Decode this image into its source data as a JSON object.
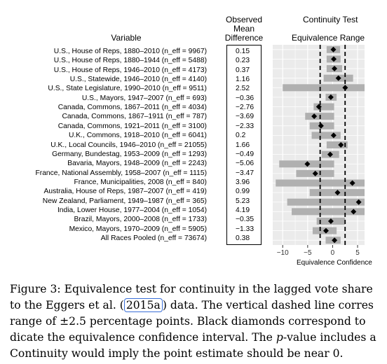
{
  "figure": {
    "headers": {
      "variable": "Variable",
      "observed_line1": "Observed",
      "observed_line2": "Mean",
      "observed_line3": "Difference",
      "continuity_title": "Continuity Test",
      "equivalence_range": "Equivalence Range"
    },
    "x_axis_label": "Equivalence Confidence",
    "x_ticks": [
      "−10",
      "−5",
      "0",
      "5"
    ],
    "rows": [
      {
        "label": "U.S., House of Reps, 1880–2010 (n_eff = 9967)",
        "value": "0.15"
      },
      {
        "label": "U.S., House of Reps, 1880–1944 (n_eff = 5488)",
        "value": "0.23"
      },
      {
        "label": "U.S., House of Reps, 1946–2010 (n_eff = 4173)",
        "value": "0.37"
      },
      {
        "label": "U.S., Statewide, 1946–2010 (n_eff = 4140)",
        "value": "1.16"
      },
      {
        "label": "U.S., State Legislature, 1990–2010 (n_eff = 9511)",
        "value": "2.52"
      },
      {
        "label": "U.S., Mayors, 1947–2007 (n_eff = 693)",
        "value": "−0.36"
      },
      {
        "label": "Canada, Commons, 1867–2011 (n_eff = 4034)",
        "value": "−2.76"
      },
      {
        "label": "Canada, Commons, 1867–1911 (n_eff = 787)",
        "value": "−3.69"
      },
      {
        "label": "Canada, Commons, 1921–2011 (n_eff = 3100)",
        "value": "−2.33"
      },
      {
        "label": "U.K., Commons, 1918–2010 (n_eff = 6041)",
        "value": "0.2"
      },
      {
        "label": "U.K., Local Councils, 1946–2010 (n_eff = 21055)",
        "value": "1.66"
      },
      {
        "label": "Germany, Bundestag, 1953–2009 (n_eff = 1293)",
        "value": "−0.49"
      },
      {
        "label": "Bavaria, Mayors, 1948–2009 (n_eff = 2243)",
        "value": "−5.06"
      },
      {
        "label": "France, National Assembly, 1958–2007 (n_eff = 1115)",
        "value": "−3.47"
      },
      {
        "label": "France, Municipalities, 2008 (n_eff = 840)",
        "value": "3.96"
      },
      {
        "label": "Australia, House of Reps, 1987–2007 (n_eff = 419)",
        "value": "0.99"
      },
      {
        "label": "New Zealand, Parliament, 1949–1987 (n_eff = 365)",
        "value": "5.23"
      },
      {
        "label": "India, Lower House, 1977–2004 (n_eff = 1054)",
        "value": "4.19"
      },
      {
        "label": "Brazil, Mayors, 2000–2008 (n_eff = 1733)",
        "value": "−0.35"
      },
      {
        "label": "Mexico, Mayors, 1970–2009 (n_eff = 5905)",
        "value": "−1.33"
      },
      {
        "label": "All Races Pooled (n_eff = 73674)",
        "value": "0.38"
      }
    ]
  },
  "chart_data": {
    "type": "scatter",
    "x_range_visible": [
      -12,
      6.4
    ],
    "equivalence_range_dashed": [
      -2.5,
      2.5
    ],
    "bar_color": "#b0b0b0",
    "grid_color": "#ffffff",
    "panel_background": "#ebebeb",
    "equivalence_bounds": [
      [
        -1.2,
        1.5
      ],
      [
        -1.2,
        1.6
      ],
      [
        -1.2,
        1.9
      ],
      [
        -1.8,
        4.1
      ],
      [
        -10,
        6.4
      ],
      [
        -1.4,
        0.8
      ],
      [
        -3.8,
        0.3
      ],
      [
        -5.5,
        0.3
      ],
      [
        -4.6,
        0.3
      ],
      [
        -4.2,
        1.6
      ],
      [
        -1.2,
        3.0
      ],
      [
        -2.2,
        1.3
      ],
      [
        -10.7,
        0.3
      ],
      [
        -7.3,
        0.3
      ],
      [
        -11.4,
        6.4
      ],
      [
        -4.6,
        6.4
      ],
      [
        -9.1,
        6.4
      ],
      [
        -8.2,
        6.4
      ],
      [
        -3.2,
        2.5
      ],
      [
        -4.0,
        0.8
      ],
      [
        -1.4,
        1.6
      ]
    ],
    "point_estimates": [
      0.15,
      0.23,
      0.37,
      1.16,
      2.52,
      -0.36,
      -2.76,
      -3.69,
      -2.33,
      0.2,
      1.66,
      -0.49,
      -5.06,
      -3.47,
      3.96,
      0.99,
      5.23,
      4.19,
      -0.35,
      -1.33,
      0.38
    ]
  },
  "caption": {
    "line1": "Figure 3: Equivalence test for continuity in the lagged vote share",
    "line2_a": "to the Eggers et al. (",
    "line2_cite": "2015a",
    "line2_b": ") data. The vertical dashed line corres",
    "line3": "range of ±2.5 percentage points. Black diamonds correspond to",
    "line4": "dicate the equivalence confidence interval. The p-value includes a",
    "line4_a": "dicate the equivalence confidence interval. The ",
    "line4_p": "p",
    "line4_b": "-value includes a",
    "line5": "Continuity would imply the point estimate should be near 0."
  }
}
